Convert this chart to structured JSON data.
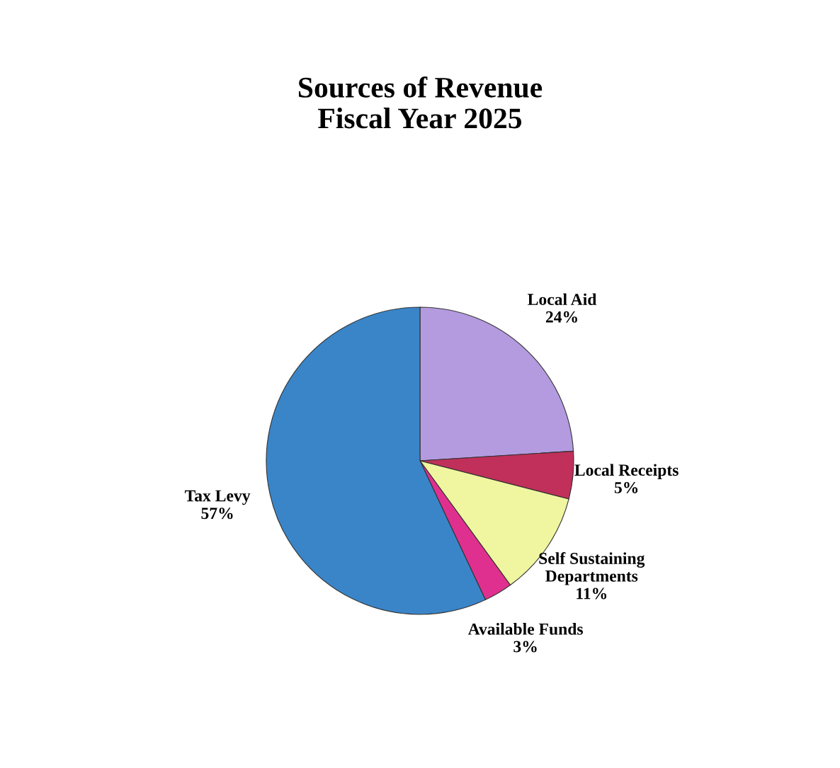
{
  "chart_data": {
    "type": "pie",
    "title": "Sources of Revenue\nFiscal Year 2025",
    "categories": [
      "Local Aid",
      "Local Receipts",
      "Self Sustaining\nDepartments",
      "Available Funds",
      "Tax Levy"
    ],
    "values": [
      24,
      5,
      11,
      3,
      57
    ],
    "value_labels": [
      "24%",
      "5%",
      "11%",
      "3%",
      "57%"
    ],
    "colors": [
      "#b49be0",
      "#c0305a",
      "#f0f5a0",
      "#e0308f",
      "#3a85c8"
    ]
  }
}
